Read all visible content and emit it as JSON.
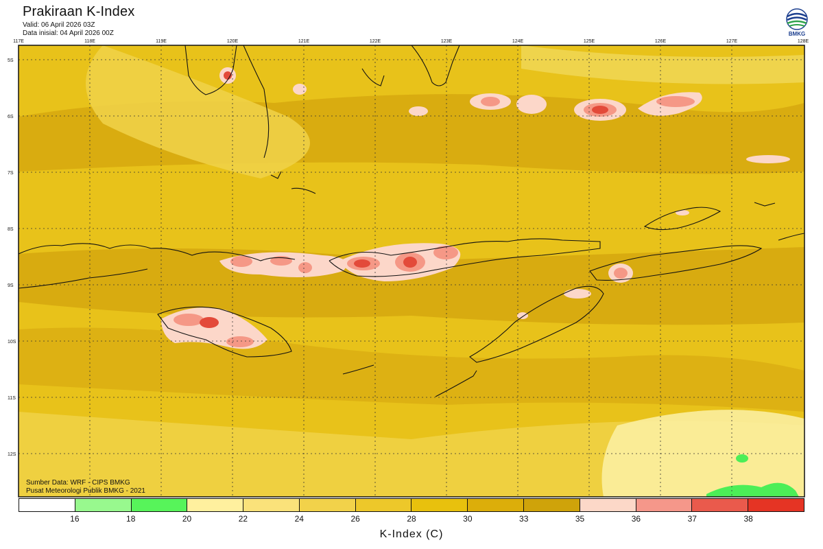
{
  "header": {
    "title": "Prakiraan K-Index",
    "valid": "Valid: 06 April 2026 03Z",
    "initial": "Data inisial: 04 April 2026 00Z"
  },
  "logo": {
    "text": "BMKG"
  },
  "map": {
    "lon_labels": [
      "117E",
      "118E",
      "119E",
      "120E",
      "121E",
      "122E",
      "123E",
      "124E",
      "125E",
      "126E",
      "127E",
      "128E"
    ],
    "lat_labels": [
      "5S",
      "6S",
      "7S",
      "8S",
      "9S",
      "10S",
      "11S",
      "12S"
    ],
    "colors": {
      "base": "#e8c21a",
      "dark": "#d6a80f",
      "light": "#f4df6e",
      "pale": "#fbeea0",
      "pink": "#fcd7c9",
      "salmon": "#f59886",
      "red": "#e34a3a",
      "green": "#4cee57"
    }
  },
  "credit": {
    "source": "Sumber Data: WRF - CIPS BMKG",
    "center": "Pusat Meteorologi Publik BMKG - 2021"
  },
  "colorbar": {
    "colors": [
      "#ffffff",
      "#98f98e",
      "#57f45a",
      "#fff09e",
      "#fae27a",
      "#f2d24a",
      "#edc82a",
      "#e8c10d",
      "#dcae0a",
      "#cfa30a",
      "#fcd8c8",
      "#f5978a",
      "#ea5a4c",
      "#e53424"
    ],
    "labels": [
      "16",
      "18",
      "20",
      "22",
      "24",
      "26",
      "28",
      "30",
      "33",
      "35",
      "36",
      "37",
      "38"
    ],
    "unit": "K-Index (C)"
  }
}
